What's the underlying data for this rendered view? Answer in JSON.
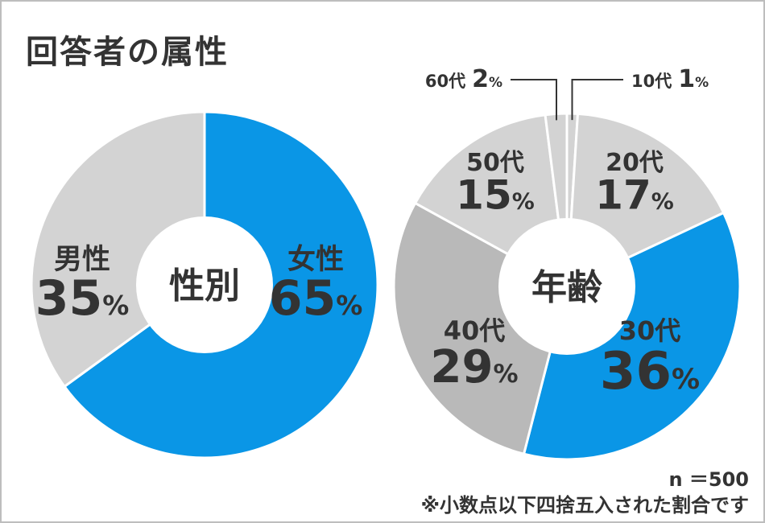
{
  "title": "回答者の属性",
  "notes": {
    "n": "n ＝500",
    "rounding": "※小数点以下四捨五入された割合です"
  },
  "colors": {
    "blue": "#0a96e6",
    "light_gray": "#d3d3d3",
    "mid_gray": "#b9b9b9",
    "text_dark": "#333333",
    "border": "#bdbdbd"
  },
  "chart_data": [
    {
      "type": "pie",
      "center_label": "性別",
      "slices": [
        {
          "label": "女性",
          "value": 65,
          "value_label": "65",
          "unit": "%",
          "color": "#0a96e6"
        },
        {
          "label": "男性",
          "value": 35,
          "value_label": "35",
          "unit": "%",
          "color": "#d3d3d3"
        }
      ]
    },
    {
      "type": "pie",
      "center_label": "年齢",
      "slices": [
        {
          "label": "10代",
          "value": 1,
          "value_label": "1",
          "unit": "%",
          "color": "#d3d3d3"
        },
        {
          "label": "20代",
          "value": 17,
          "value_label": "17",
          "unit": "%",
          "color": "#d3d3d3"
        },
        {
          "label": "30代",
          "value": 36,
          "value_label": "36",
          "unit": "%",
          "color": "#0a96e6"
        },
        {
          "label": "40代",
          "value": 29,
          "value_label": "29",
          "unit": "%",
          "color": "#b9b9b9"
        },
        {
          "label": "50代",
          "value": 15,
          "value_label": "15",
          "unit": "%",
          "color": "#d3d3d3"
        },
        {
          "label": "60代",
          "value": 2,
          "value_label": "2",
          "unit": "%",
          "color": "#d3d3d3"
        }
      ]
    }
  ]
}
